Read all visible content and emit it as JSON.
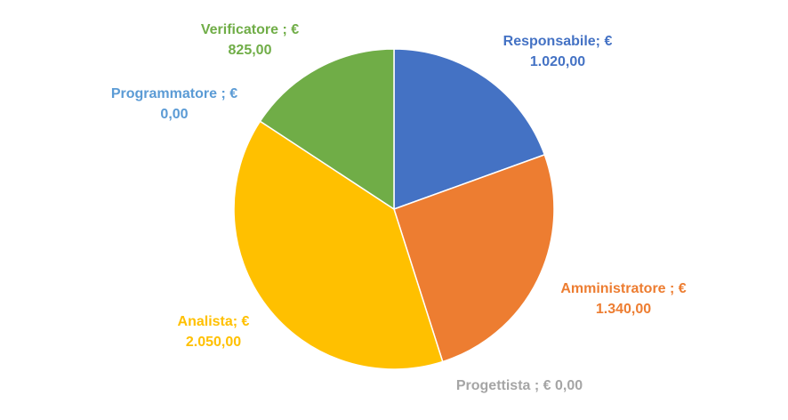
{
  "chart_data": {
    "type": "pie",
    "title": "",
    "currency": "€",
    "slices": [
      {
        "name": "Responsabile",
        "label_line1": "Responsabile; €",
        "label_line2": "1.020,00",
        "value": 1020.0,
        "color": "#4472C4"
      },
      {
        "name": "Amministratore",
        "label_line1": "Amministratore ; €",
        "label_line2": "1.340,00",
        "value": 1340.0,
        "color": "#ED7D31"
      },
      {
        "name": "Progettista",
        "label_line1": "Progettista ; € 0,00",
        "label_line2": "",
        "value": 0.0,
        "color": "#A5A5A5"
      },
      {
        "name": "Analista",
        "label_line1": "Analista; €",
        "label_line2": "2.050,00",
        "value": 2050.0,
        "color": "#FFC000"
      },
      {
        "name": "Programmatore",
        "label_line1": "Programmatore ; €",
        "label_line2": "0,00",
        "value": 0.0,
        "color": "#5B9BD5"
      },
      {
        "name": "Verificatore",
        "label_line1": "Verificatore ; €",
        "label_line2": "825,00",
        "value": 825.0,
        "color": "#70AD47"
      }
    ]
  }
}
